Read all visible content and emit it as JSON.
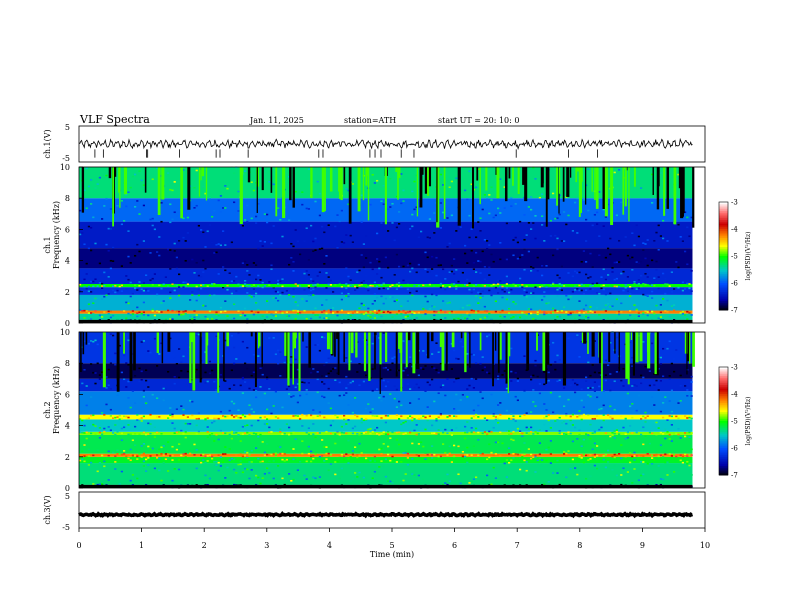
{
  "header": {
    "title": "VLF  Spectra",
    "date": "Jan. 11, 2025",
    "station": "station=ATH",
    "start": "start  UT  =   20: 10: 0"
  },
  "xaxis": {
    "label": "Time  (min)",
    "ticks": [
      "0",
      "1",
      "2",
      "3",
      "4",
      "5",
      "6",
      "7",
      "8",
      "9",
      "10"
    ]
  },
  "colorbar": {
    "label": "log(PSD)(V²/Hz)",
    "ticks": [
      "-3",
      "-4",
      "-5",
      "-6",
      "-7"
    ],
    "colors": [
      "#ffffff",
      "#ff6a6a",
      "#cc0000",
      "#ff7f00",
      "#ffff00",
      "#00ff00",
      "#00c8c8",
      "#0050ff",
      "#0000aa",
      "#000000"
    ]
  },
  "chart_data": [
    {
      "type": "line",
      "name": "ch.1(V)",
      "ylabel": "ch.1(V)",
      "xlim": [
        0,
        10
      ],
      "ylim": [
        -5,
        5
      ],
      "yticks": [
        "5",
        "-5"
      ],
      "mean": 0,
      "amplitude": 1.2
    },
    {
      "type": "heatmap",
      "name": "ch.1",
      "ylabel_top": "ch.1",
      "ylabel": "Frequency  (kHz)",
      "xlim": [
        0,
        10
      ],
      "data_end_min": 9.8,
      "ylim": [
        0,
        10
      ],
      "yticks": [
        "10",
        "8",
        "6",
        "4",
        "2",
        "0"
      ],
      "bands_khz": [
        {
          "from": 0.0,
          "to": 0.2,
          "level": -7
        },
        {
          "from": 0.2,
          "to": 0.6,
          "level": -5.4
        },
        {
          "from": 0.6,
          "to": 0.8,
          "level": -4.2
        },
        {
          "from": 0.8,
          "to": 1.8,
          "level": -5.6
        },
        {
          "from": 1.8,
          "to": 2.3,
          "level": -6.2
        },
        {
          "from": 2.3,
          "to": 2.5,
          "level": -5.0
        },
        {
          "from": 2.5,
          "to": 3.5,
          "level": -6.3
        },
        {
          "from": 3.5,
          "to": 4.8,
          "level": -6.7
        },
        {
          "from": 4.8,
          "to": 6.5,
          "level": -6.4
        },
        {
          "from": 6.5,
          "to": 8.0,
          "level": -5.9
        },
        {
          "from": 8.0,
          "to": 10.0,
          "level": -5.3
        }
      ]
    },
    {
      "type": "heatmap",
      "name": "ch.2",
      "ylabel_top": "ch.2",
      "ylabel": "Frequency  (kHz)",
      "xlim": [
        0,
        10
      ],
      "data_end_min": 9.8,
      "ylim": [
        0,
        10
      ],
      "yticks": [
        "10",
        "8",
        "6",
        "4",
        "2",
        "0"
      ],
      "bands_khz": [
        {
          "from": 0.0,
          "to": 0.2,
          "level": -7
        },
        {
          "from": 0.2,
          "to": 1.6,
          "level": -5.3
        },
        {
          "from": 1.6,
          "to": 2.0,
          "level": -5.1
        },
        {
          "from": 2.0,
          "to": 2.2,
          "level": -4.2
        },
        {
          "from": 2.2,
          "to": 3.4,
          "level": -5.2
        },
        {
          "from": 3.4,
          "to": 3.6,
          "level": -4.8
        },
        {
          "from": 3.6,
          "to": 4.4,
          "level": -5.5
        },
        {
          "from": 4.4,
          "to": 4.7,
          "level": -4.6
        },
        {
          "from": 4.7,
          "to": 6.2,
          "level": -5.8
        },
        {
          "from": 6.2,
          "to": 7.0,
          "level": -6.3
        },
        {
          "from": 7.0,
          "to": 8.0,
          "level": -6.8
        },
        {
          "from": 8.0,
          "to": 10.0,
          "level": -6.2
        }
      ]
    },
    {
      "type": "line",
      "name": "ch.3(V)",
      "ylabel": "ch.3(V)",
      "xlim": [
        0,
        10
      ],
      "ylim": [
        -5,
        5
      ],
      "yticks": [
        "5",
        "-5"
      ],
      "mean": -1.3,
      "amplitude": 0.25
    }
  ]
}
